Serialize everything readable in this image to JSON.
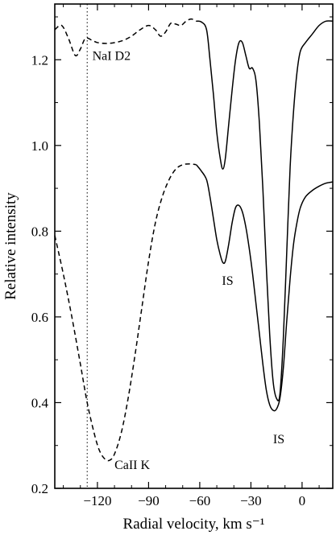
{
  "chart_data": {
    "type": "line",
    "title": "",
    "xlabel": "Radial velocity, km s⁻¹",
    "ylabel": "Relative intensity",
    "xlim": [
      -145,
      18
    ],
    "ylim": [
      0.2,
      1.33
    ],
    "xticks": [
      -120,
      -90,
      -60,
      -30,
      0
    ],
    "xtick_labels": [
      "−120",
      "−90",
      "−60",
      "−30",
      "0"
    ],
    "yticks": [
      0.2,
      0.4,
      0.6,
      0.8,
      1.0,
      1.2
    ],
    "ytick_labels": [
      "0.2",
      "0.4",
      "0.6",
      "0.8",
      "1.0",
      "1.2"
    ],
    "grid": false,
    "reference_line_x": -126,
    "series": [
      {
        "name": "NaI D2",
        "style": "dashed",
        "x": [
          -145,
          -141,
          -137,
          -133,
          -130,
          -127,
          -123,
          -120,
          -115,
          -110,
          -105,
          -100,
          -95,
          -90,
          -86,
          -83,
          -80,
          -77,
          -74,
          -71,
          -68,
          -65,
          -62
        ],
        "y": [
          1.27,
          1.28,
          1.25,
          1.21,
          1.225,
          1.25,
          1.245,
          1.24,
          1.238,
          1.24,
          1.245,
          1.255,
          1.27,
          1.28,
          1.27,
          1.255,
          1.265,
          1.285,
          1.283,
          1.28,
          1.29,
          1.295,
          1.29
        ]
      },
      {
        "name": "",
        "style": "solid",
        "x": [
          -62,
          -59,
          -56,
          -54,
          -52,
          -50,
          -48,
          -46.5,
          -45,
          -43,
          -41,
          -39,
          -37,
          -35,
          -33,
          -31,
          -29,
          -27,
          -25,
          -23,
          -21,
          -19,
          -17,
          -15,
          -13,
          -11,
          -9,
          -7,
          -5,
          -3,
          -1,
          2,
          6,
          10,
          14,
          18
        ],
        "y": [
          1.29,
          1.288,
          1.27,
          1.2,
          1.12,
          1.03,
          0.97,
          0.945,
          0.97,
          1.05,
          1.13,
          1.2,
          1.24,
          1.24,
          1.21,
          1.18,
          1.18,
          1.15,
          1.05,
          0.9,
          0.72,
          0.56,
          0.45,
          0.41,
          0.42,
          0.55,
          0.75,
          0.95,
          1.08,
          1.17,
          1.22,
          1.24,
          1.26,
          1.28,
          1.29,
          1.29
        ]
      },
      {
        "name": "CaII K",
        "style": "dashed",
        "x": [
          -145,
          -140,
          -135,
          -130,
          -126,
          -122,
          -119,
          -116,
          -113,
          -110,
          -106,
          -102,
          -98,
          -94,
          -90,
          -86,
          -82,
          -78,
          -74,
          -70,
          -66,
          -62
        ],
        "y": [
          0.79,
          0.7,
          0.6,
          0.49,
          0.4,
          0.33,
          0.29,
          0.27,
          0.265,
          0.28,
          0.33,
          0.41,
          0.51,
          0.62,
          0.73,
          0.82,
          0.88,
          0.92,
          0.945,
          0.955,
          0.957,
          0.955
        ]
      },
      {
        "name": "",
        "style": "solid",
        "x": [
          -62,
          -59,
          -56,
          -54,
          -52,
          -50,
          -48,
          -46.5,
          -45,
          -43,
          -41,
          -39,
          -37,
          -35,
          -33,
          -31,
          -29,
          -27,
          -25,
          -23,
          -21,
          -19,
          -17,
          -15,
          -13,
          -11,
          -9,
          -7,
          -5,
          -3,
          -1,
          2,
          6,
          10,
          14,
          18
        ],
        "y": [
          0.955,
          0.94,
          0.92,
          0.88,
          0.83,
          0.78,
          0.745,
          0.727,
          0.73,
          0.77,
          0.82,
          0.855,
          0.86,
          0.845,
          0.81,
          0.76,
          0.7,
          0.63,
          0.56,
          0.49,
          0.43,
          0.395,
          0.382,
          0.385,
          0.41,
          0.48,
          0.59,
          0.69,
          0.77,
          0.82,
          0.855,
          0.88,
          0.895,
          0.905,
          0.912,
          0.915
        ]
      }
    ],
    "annotations": [
      {
        "text": "NaI D2",
        "x": -123,
        "y": 1.2
      },
      {
        "text": "IS",
        "x": -47,
        "y": 0.675
      },
      {
        "text": "IS",
        "x": -17,
        "y": 0.305
      },
      {
        "text": "CaII K",
        "x": -110,
        "y": 0.245
      }
    ]
  }
}
